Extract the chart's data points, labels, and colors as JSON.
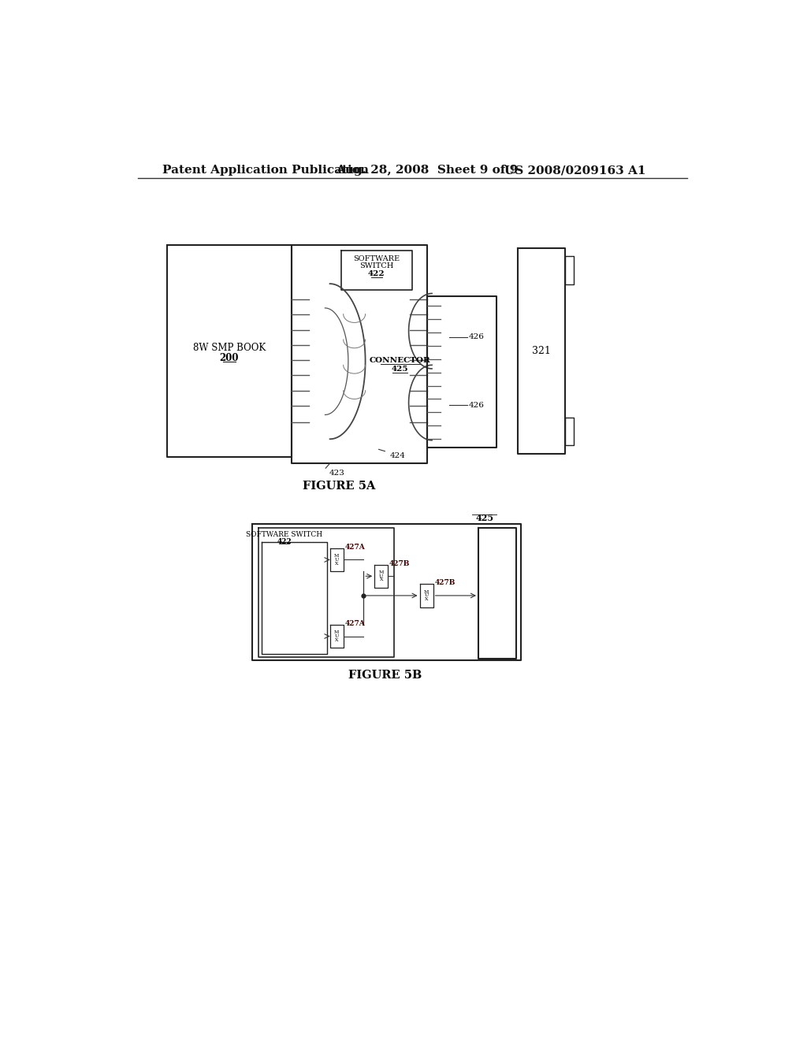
{
  "bg_color": "#ffffff",
  "header_left": "Patent Application Publication",
  "header_mid": "Aug. 28, 2008  Sheet 9 of 9",
  "header_right": "US 2008/0209163 A1",
  "fig5a_caption": "FIGURE 5A",
  "fig5b_caption": "FIGURE 5B",
  "fig5a": {
    "book_label1": "8W SMP BOOK",
    "book_label2": "200",
    "connector_label1": "CONNECTOR",
    "connector_label2": "425",
    "sw_label1": "SOFTWARE",
    "sw_label2": "SWITCH",
    "sw_label3": "422",
    "label_423": "423",
    "label_424": "424",
    "label_426a": "426",
    "label_426b": "426",
    "label_321": "321"
  },
  "fig5b": {
    "sw_label1": "SOFTWARE SWITCH",
    "sw_label2": "422",
    "connector_label": "425",
    "label_427A_top": "427A",
    "label_427B_mid": "427B",
    "label_427B_right": "427B",
    "label_427A_bot": "427A"
  }
}
